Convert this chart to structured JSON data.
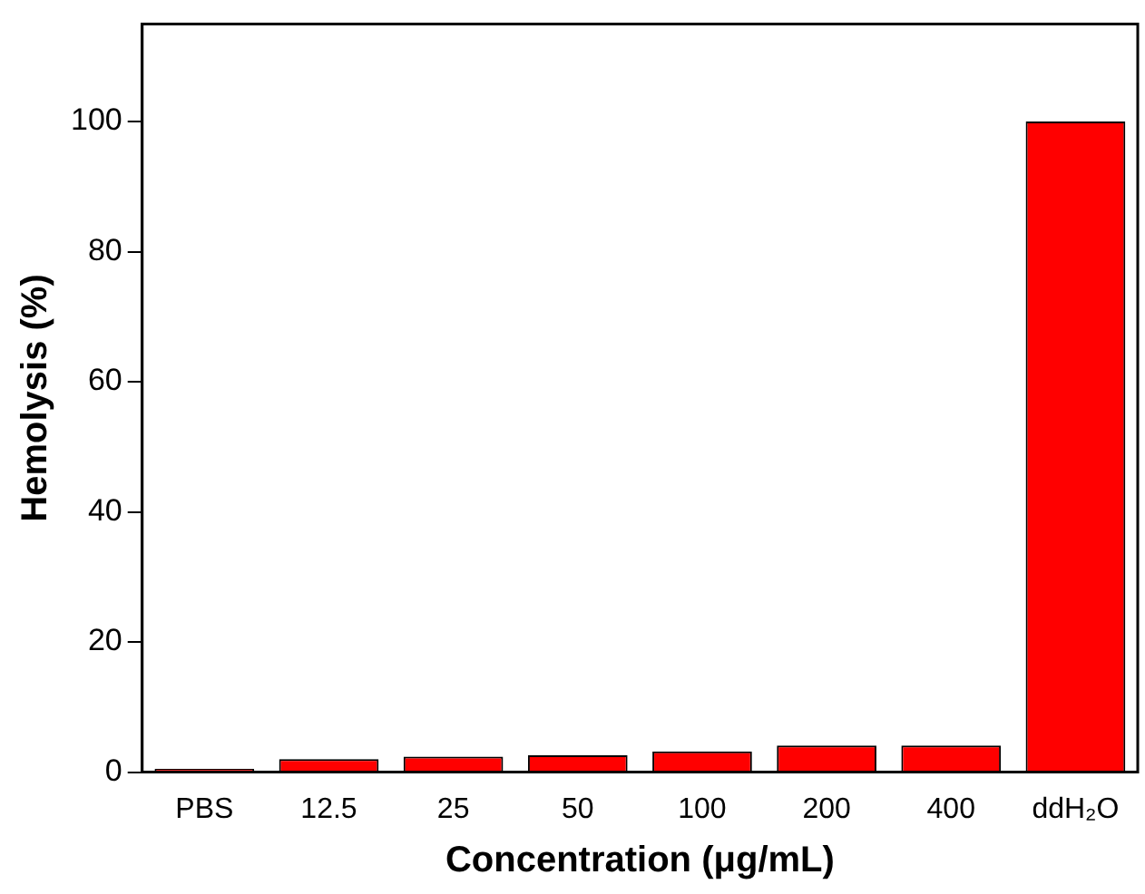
{
  "chart_data": {
    "type": "bar",
    "xlabel": "Concentration (μg/mL)",
    "ylabel": "Hemolysis (%)",
    "categories": [
      "PBS",
      "12.5",
      "25",
      "50",
      "100",
      "200",
      "400",
      "ddH₂O"
    ],
    "values": [
      0.5,
      2.0,
      2.4,
      2.6,
      3.2,
      4.1,
      4.1,
      100
    ],
    "color": "#ff0000",
    "ylim": [
      0,
      115
    ],
    "yticks": [
      0,
      20,
      40,
      60,
      80,
      100
    ],
    "grid": false,
    "legend": false
  }
}
